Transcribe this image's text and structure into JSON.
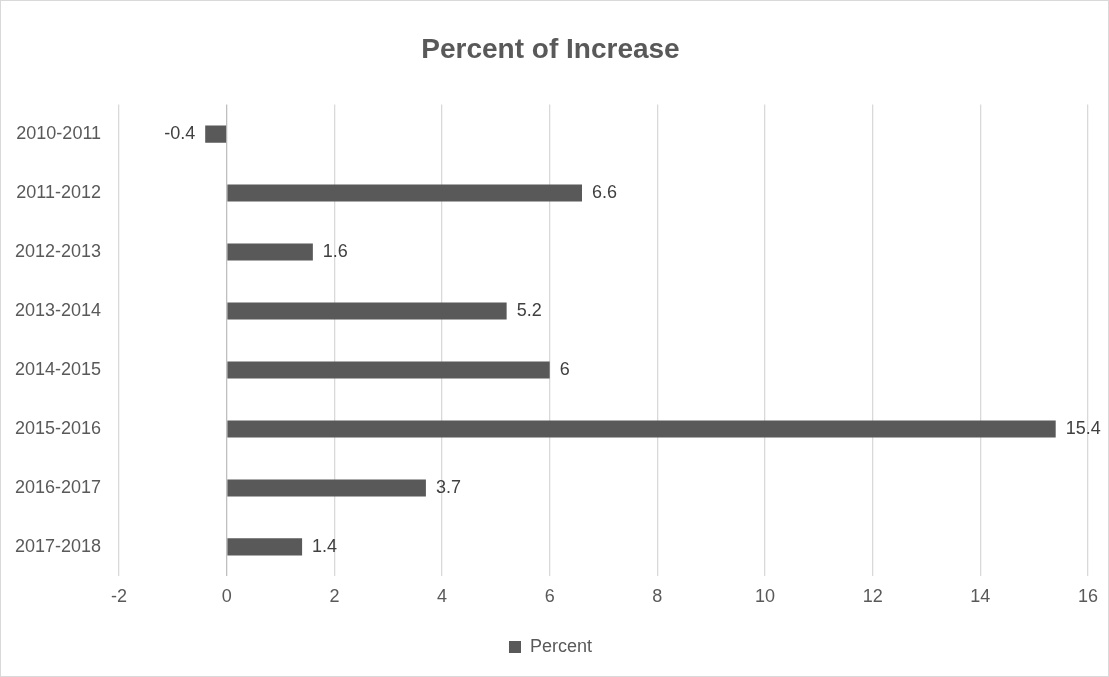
{
  "chart_data": {
    "type": "bar",
    "orientation": "horizontal",
    "title": "Percent of Increase",
    "categories": [
      "2010-2011",
      "2011-2012",
      "2012-2013",
      "2013-2014",
      "2014-2015",
      "2015-2016",
      "2016-2017",
      "2017-2018"
    ],
    "series": [
      {
        "name": "Percent",
        "color": "#595959",
        "values": [
          -0.4,
          6.6,
          1.6,
          5.2,
          6,
          15.4,
          3.7,
          1.4
        ]
      }
    ],
    "xlim": [
      -2,
      16
    ],
    "xticks": [
      -2,
      0,
      2,
      4,
      6,
      8,
      10,
      12,
      14,
      16
    ],
    "grid": "x",
    "legend": "bottom",
    "data_labels": true
  }
}
